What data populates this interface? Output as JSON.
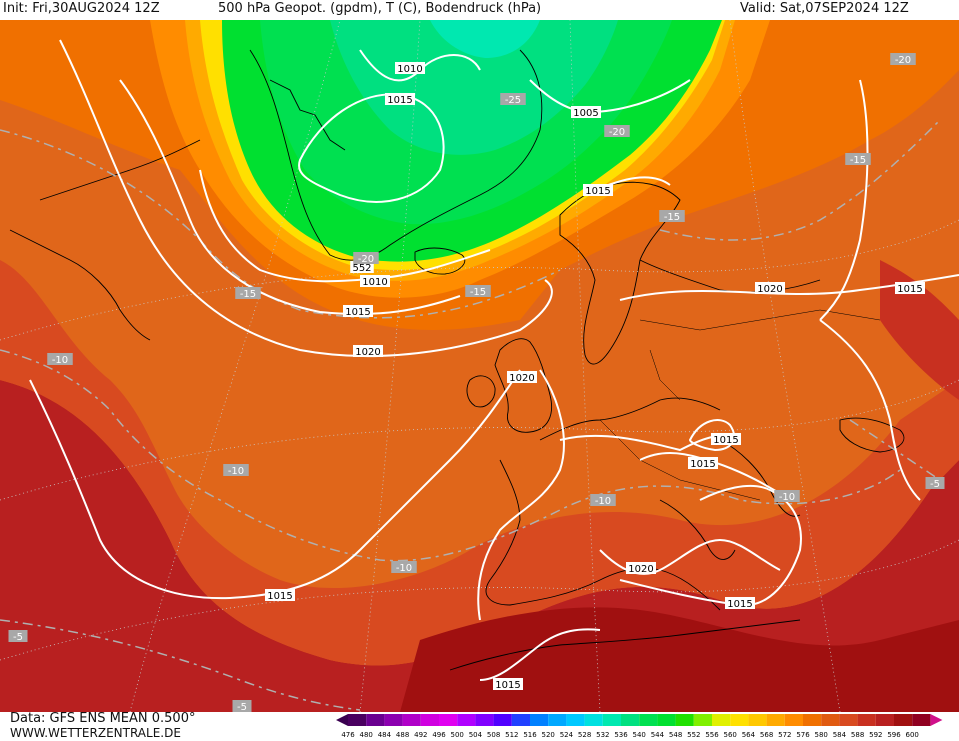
{
  "header": {
    "init": "Init: Fri,30AUG2024 12Z",
    "title": "500 hPa Geopot. (gpdm), T (C), Bodendruck (hPa)",
    "valid": "Valid: Sat,07SEP2024 12Z"
  },
  "footer": {
    "data": "Data: GFS ENS MEAN 0.500°",
    "site": "WWW.WETTERZENTRALE.DE"
  },
  "scale": {
    "values": [
      "476",
      "480",
      "484",
      "488",
      "492",
      "496",
      "500",
      "504",
      "508",
      "512",
      "516",
      "520",
      "524",
      "528",
      "532",
      "536",
      "540",
      "544",
      "548",
      "552",
      "556",
      "560",
      "564",
      "568",
      "572",
      "576",
      "580",
      "584",
      "588",
      "592",
      "596",
      "600"
    ],
    "colors": [
      "#4a0060",
      "#6a0090",
      "#8c00b0",
      "#b000c8",
      "#d000e0",
      "#e000f0",
      "#b000ff",
      "#8000ff",
      "#5000ff",
      "#2040ff",
      "#0080ff",
      "#00a8ff",
      "#00c8ff",
      "#00e0e0",
      "#00e8b0",
      "#00e080",
      "#00e050",
      "#00e030",
      "#20e000",
      "#80f000",
      "#e0f000",
      "#ffe000",
      "#ffc800",
      "#ffaa00",
      "#ff8c00",
      "#f07000",
      "#e05a10",
      "#d84a20",
      "#c83020",
      "#b82020",
      "#a01010",
      "#900020"
    ]
  },
  "pressure_labels": [
    {
      "text": "1010",
      "label": "isobar-1010"
    },
    {
      "text": "1015",
      "label": "isobar-1015"
    },
    {
      "text": "1005",
      "label": "isobar-1005"
    },
    {
      "text": "1015",
      "label": "isobar-1015"
    },
    {
      "text": "552",
      "label": "geopot-552"
    },
    {
      "text": "1010",
      "label": "isobar-1010"
    },
    {
      "text": "1015",
      "label": "isobar-1015"
    },
    {
      "text": "1020",
      "label": "isobar-1020"
    },
    {
      "text": "1020",
      "label": "isobar-1020"
    },
    {
      "text": "1020",
      "label": "isobar-1020"
    },
    {
      "text": "1015",
      "label": "isobar-1015"
    },
    {
      "text": "1015",
      "label": "isobar-1015"
    },
    {
      "text": "1015",
      "label": "isobar-1015"
    },
    {
      "text": "1020",
      "label": "isobar-1020"
    },
    {
      "text": "1015",
      "label": "isobar-1015"
    },
    {
      "text": "1015",
      "label": "isobar-1015"
    },
    {
      "text": "1015",
      "label": "isobar-1015"
    }
  ],
  "temp_labels": [
    {
      "text": "-25"
    },
    {
      "text": "-20"
    },
    {
      "text": "-20"
    },
    {
      "text": "-15"
    },
    {
      "text": "-20"
    },
    {
      "text": "-15"
    },
    {
      "text": "-15"
    },
    {
      "text": "-15"
    },
    {
      "text": "-10"
    },
    {
      "text": "-10"
    },
    {
      "text": "-10"
    },
    {
      "text": "-10"
    },
    {
      "text": "-10"
    },
    {
      "text": "-5"
    },
    {
      "text": "-5"
    },
    {
      "text": "-5"
    },
    {
      "text": "-20"
    }
  ]
}
